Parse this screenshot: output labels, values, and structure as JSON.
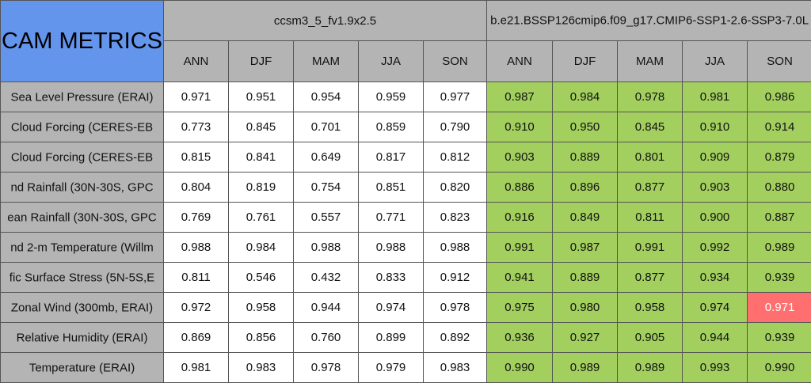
{
  "title": "CAM METRICS",
  "groups": [
    "ccsm3_5_fv1.9x2.5",
    "b.e21.BSSP126cmip6.f09_g17.CMIP6-SSP1-2.6-SSP3-7.0L"
  ],
  "seasons": [
    "ANN",
    "DJF",
    "MAM",
    "JJA",
    "SON"
  ],
  "colors": {
    "title": "#6495ed",
    "header": "#b4b4b4",
    "better": "#a3cf5f",
    "worse": "#ff6f6f",
    "baseline": "#ffffff"
  },
  "rows": [
    {
      "label": "Sea Level Pressure (ERAI)",
      "a": [
        "0.971",
        "0.951",
        "0.954",
        "0.959",
        "0.977"
      ],
      "b": [
        "0.987",
        "0.984",
        "0.978",
        "0.981",
        "0.986"
      ]
    },
    {
      "label": "Cloud Forcing (CERES-EB",
      "a": [
        "0.773",
        "0.845",
        "0.701",
        "0.859",
        "0.790"
      ],
      "b": [
        "0.910",
        "0.950",
        "0.845",
        "0.910",
        "0.914"
      ]
    },
    {
      "label": "Cloud Forcing (CERES-EB",
      "a": [
        "0.815",
        "0.841",
        "0.649",
        "0.817",
        "0.812"
      ],
      "b": [
        "0.903",
        "0.889",
        "0.801",
        "0.909",
        "0.879"
      ]
    },
    {
      "label": "nd Rainfall (30N-30S, GPC",
      "a": [
        "0.804",
        "0.819",
        "0.754",
        "0.851",
        "0.820"
      ],
      "b": [
        "0.886",
        "0.896",
        "0.877",
        "0.903",
        "0.880"
      ]
    },
    {
      "label": "ean Rainfall (30N-30S, GPC",
      "a": [
        "0.769",
        "0.761",
        "0.557",
        "0.771",
        "0.823"
      ],
      "b": [
        "0.916",
        "0.849",
        "0.811",
        "0.900",
        "0.887"
      ]
    },
    {
      "label": "nd 2-m Temperature (Willm",
      "a": [
        "0.988",
        "0.984",
        "0.988",
        "0.988",
        "0.988"
      ],
      "b": [
        "0.991",
        "0.987",
        "0.991",
        "0.992",
        "0.989"
      ]
    },
    {
      "label": "fic Surface Stress (5N-5S,E",
      "a": [
        "0.811",
        "0.546",
        "0.432",
        "0.833",
        "0.912"
      ],
      "b": [
        "0.941",
        "0.889",
        "0.877",
        "0.934",
        "0.939"
      ]
    },
    {
      "label": "Zonal Wind (300mb, ERAI)",
      "a": [
        "0.972",
        "0.958",
        "0.944",
        "0.974",
        "0.978"
      ],
      "b": [
        "0.975",
        "0.980",
        "0.958",
        "0.974",
        "0.971"
      ],
      "b_worse": [
        4
      ]
    },
    {
      "label": "Relative Humidity (ERAI)",
      "a": [
        "0.869",
        "0.856",
        "0.760",
        "0.899",
        "0.892"
      ],
      "b": [
        "0.936",
        "0.927",
        "0.905",
        "0.944",
        "0.939"
      ]
    },
    {
      "label": "Temperature (ERAI)",
      "a": [
        "0.981",
        "0.983",
        "0.978",
        "0.979",
        "0.983"
      ],
      "b": [
        "0.990",
        "0.989",
        "0.989",
        "0.993",
        "0.990"
      ]
    }
  ]
}
